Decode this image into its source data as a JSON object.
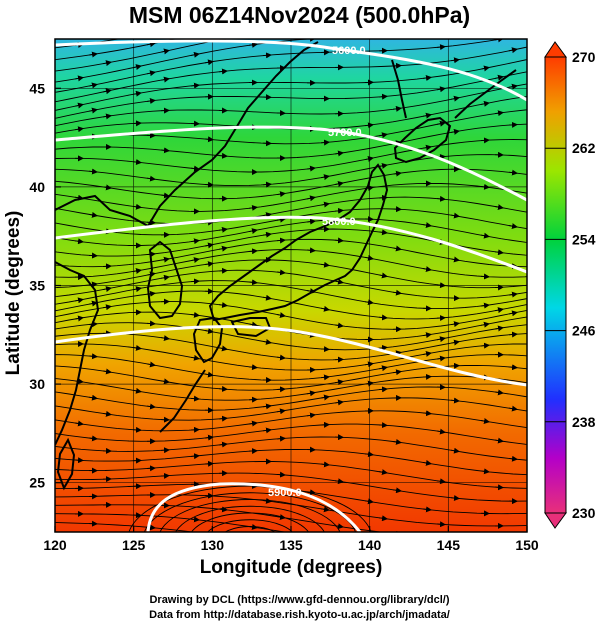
{
  "title": "MSM 06Z14Nov2024 (500.0hPa)",
  "map": {
    "xlabel": "Longitude (degrees)",
    "ylabel": "Latitude  (degrees)",
    "lon_range": [
      120,
      150
    ],
    "lat_range": [
      22.5,
      47.5
    ],
    "lon_ticks": [
      120,
      125,
      130,
      135,
      140,
      145,
      150
    ],
    "lat_ticks": [
      25,
      30,
      35,
      40,
      45
    ],
    "grid": true
  },
  "contours": [
    {
      "label": "5600.0",
      "color": "#ffffff"
    },
    {
      "label": "5700.0",
      "color": "#ffffff"
    },
    {
      "label": "5800.0",
      "color": "#ffffff"
    },
    {
      "label": "5900.0",
      "color": "#ffffff"
    }
  ],
  "colorbar": {
    "ticks": [
      270,
      262,
      254,
      246,
      238,
      230
    ],
    "min": 230,
    "max": 270,
    "colors": [
      "#e8307a",
      "#b400c8",
      "#2030ff",
      "#00d7e6",
      "#00d23c",
      "#9be600",
      "#f0a000",
      "#ff3c00"
    ]
  },
  "credits": {
    "line1": "Drawing by DCL (https://www.gfd-dennou.org/library/dcl/)",
    "line2": "Data from http://database.rish.kyoto-u.ac.jp/arch/jmadata/"
  }
}
